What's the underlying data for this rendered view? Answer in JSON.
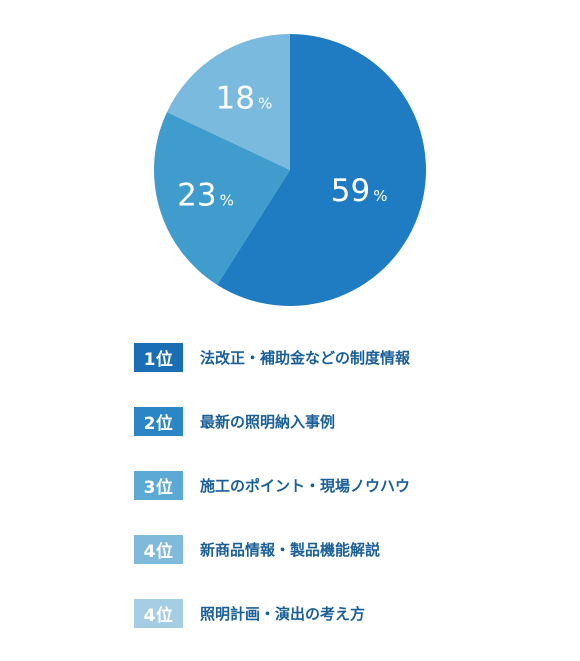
{
  "chart_data": {
    "type": "pie",
    "values": [
      59,
      23,
      18
    ],
    "labels": [
      "59",
      "23",
      "18"
    ],
    "unit": "%",
    "colors": [
      "#1f7bc2",
      "#3f9ccc",
      "#79bade"
    ],
    "start": "12 o'clock, clockwise"
  },
  "ranking": [
    {
      "rank": "1位",
      "label": "法改正・補助金などの制度情報",
      "color": "#1a6fb4"
    },
    {
      "rank": "2位",
      "label": "最新の照明納入事例",
      "color": "#2a86c4"
    },
    {
      "rank": "3位",
      "label": "施工のポイント・現場ノウハウ",
      "color": "#5ba9d4"
    },
    {
      "rank": "4位",
      "label": "新商品情報・製品機能解説",
      "color": "#7fbadb"
    },
    {
      "rank": "4位",
      "label": "照明計画・演出の考え方",
      "color": "#a5cde4"
    }
  ]
}
